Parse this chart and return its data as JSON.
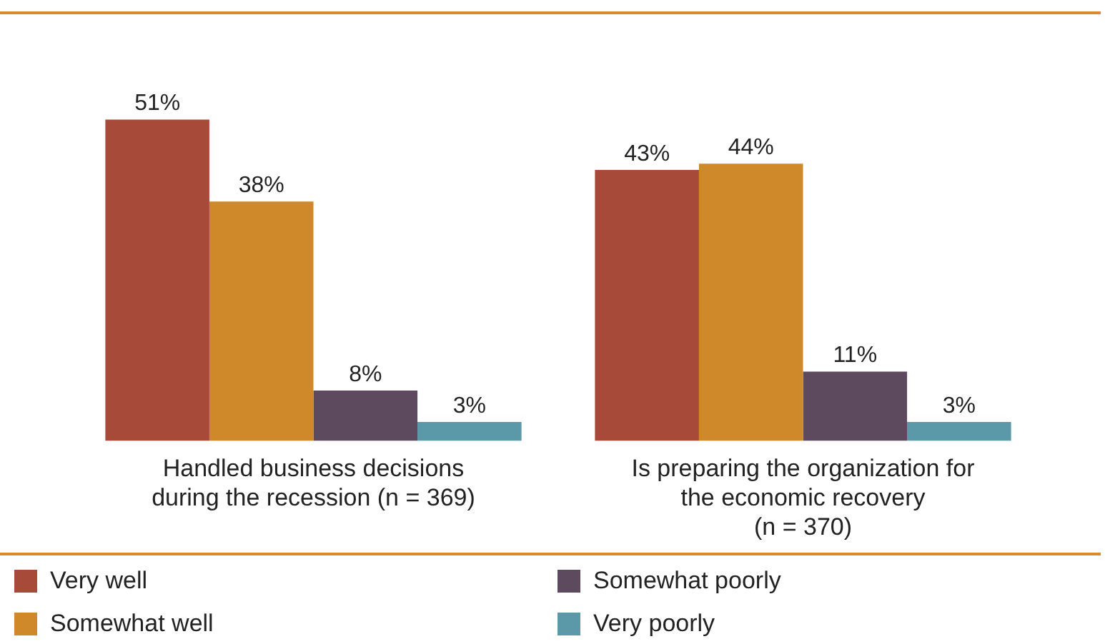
{
  "chart_data": {
    "type": "bar",
    "categories": [
      "Handled business decisions\nduring the recession (n = 369)",
      "Is preparing the organization for\nthe economic recovery\n(n = 370)"
    ],
    "series": [
      {
        "name": "Very well",
        "color": "#a84a3a",
        "values": [
          51,
          43
        ],
        "value_labels": [
          "51%",
          "43%"
        ]
      },
      {
        "name": "Somewhat well",
        "color": "#d0892a",
        "values": [
          38,
          44
        ],
        "value_labels": [
          "38%",
          "44%"
        ]
      },
      {
        "name": "Somewhat poorly",
        "color": "#5e4a5e",
        "values": [
          8,
          11
        ],
        "value_labels": [
          "8%",
          "11%"
        ]
      },
      {
        "name": "Very poorly",
        "color": "#5b98a8",
        "values": [
          3,
          3
        ],
        "value_labels": [
          "3%",
          "3%"
        ]
      }
    ],
    "relative": false,
    "legend": "bottom",
    "grid": false
  }
}
